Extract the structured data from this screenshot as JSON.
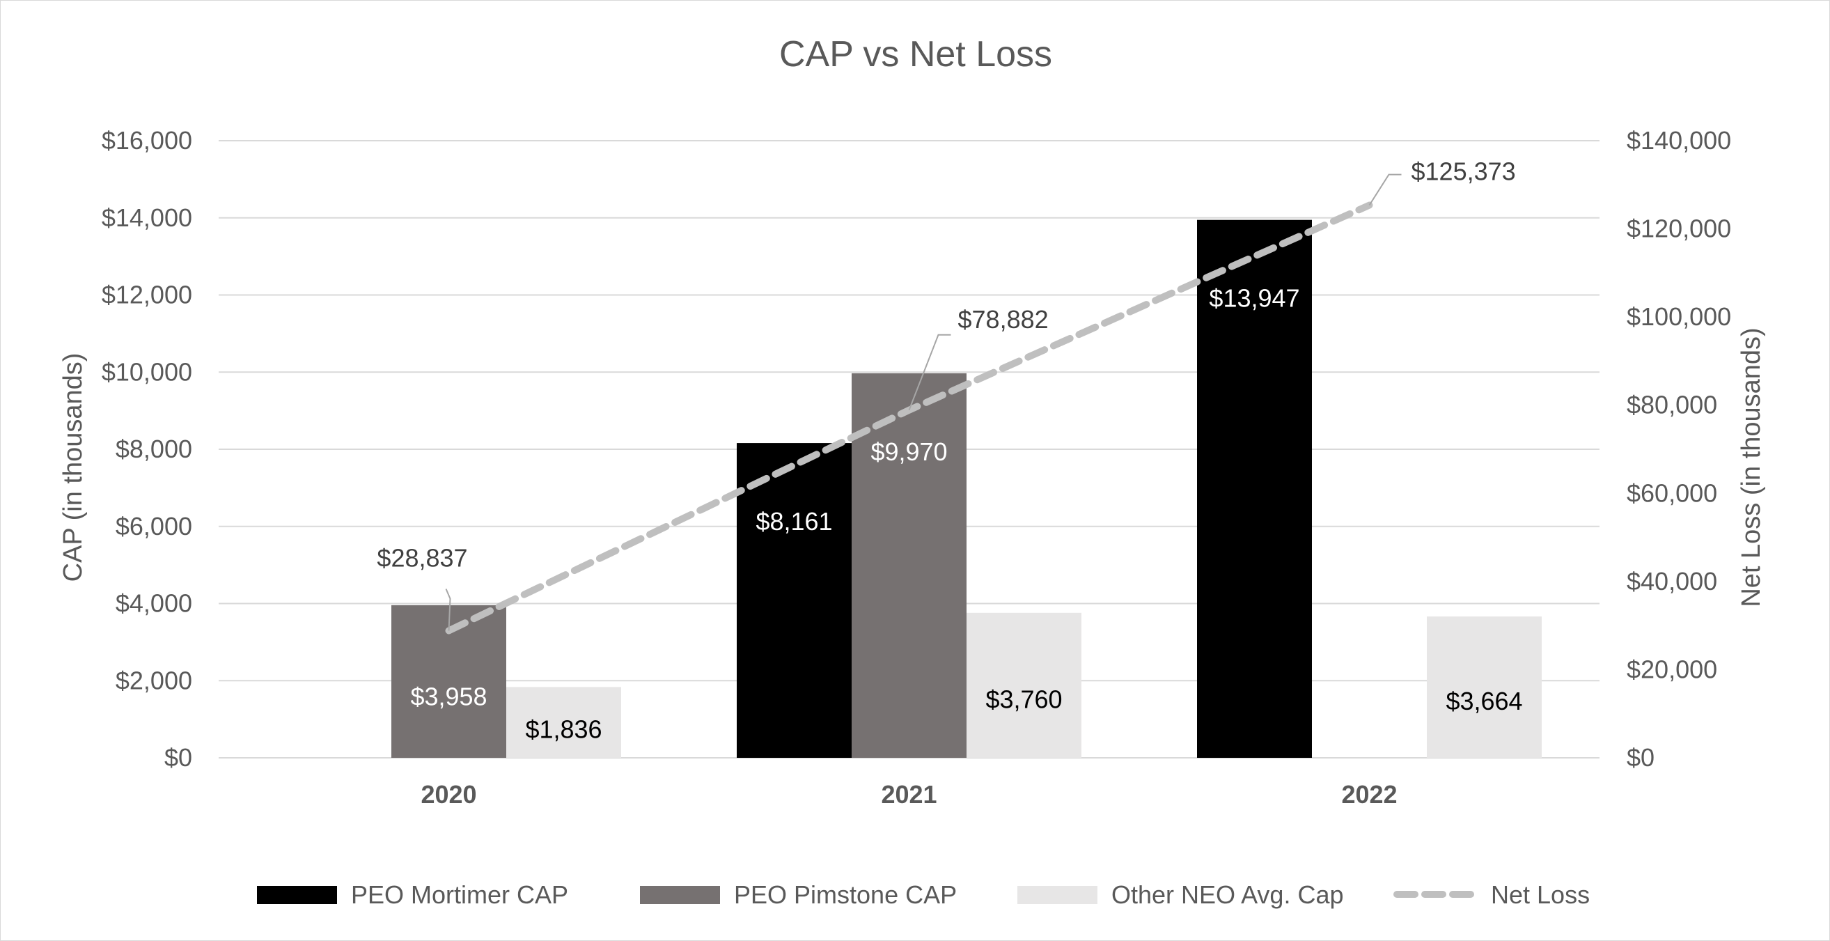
{
  "chart_data": {
    "type": "bar",
    "title": "CAP vs Net Loss",
    "categories": [
      "2020",
      "2021",
      "2022"
    ],
    "ylabel": "CAP (in thousands)",
    "y2label": "Net Loss (in thousands)",
    "ylim": [
      0,
      16000
    ],
    "y2lim": [
      0,
      140000
    ],
    "y_ticks": [
      0,
      2000,
      4000,
      6000,
      8000,
      10000,
      12000,
      14000,
      16000
    ],
    "y_tick_labels": [
      "$0",
      "$2,000",
      "$4,000",
      "$6,000",
      "$8,000",
      "$10,000",
      "$12,000",
      "$14,000",
      "$16,000"
    ],
    "y2_ticks": [
      0,
      20000,
      40000,
      60000,
      80000,
      100000,
      120000,
      140000
    ],
    "y2_tick_labels": [
      "$0",
      "$20,000",
      "$40,000",
      "$60,000",
      "$80,000",
      "$100,000",
      "$120,000",
      "$140,000"
    ],
    "series": [
      {
        "name": "PEO Mortimer CAP",
        "kind": "bar",
        "color": "#000000",
        "values": [
          null,
          8161,
          13947
        ],
        "labels": [
          null,
          "$8,161",
          "$13,947"
        ]
      },
      {
        "name": "PEO Pimstone CAP",
        "kind": "bar",
        "color": "#767171",
        "values": [
          3958,
          9970,
          null
        ],
        "labels": [
          "$3,958",
          "$9,970",
          null
        ]
      },
      {
        "name": "Other NEO Avg. Cap",
        "kind": "bar",
        "color": "#e7e6e6",
        "values": [
          1836,
          3760,
          3664
        ],
        "labels": [
          "$1,836",
          "$3,760",
          "$3,664"
        ]
      },
      {
        "name": "Net Loss",
        "kind": "line",
        "axis": "secondary",
        "color": "#bfbfbf",
        "dash": true,
        "values": [
          28837,
          78882,
          125373
        ],
        "labels": [
          "$28,837",
          "$78,882",
          "$125,373"
        ]
      }
    ],
    "legend": "bottom",
    "grid": true
  }
}
